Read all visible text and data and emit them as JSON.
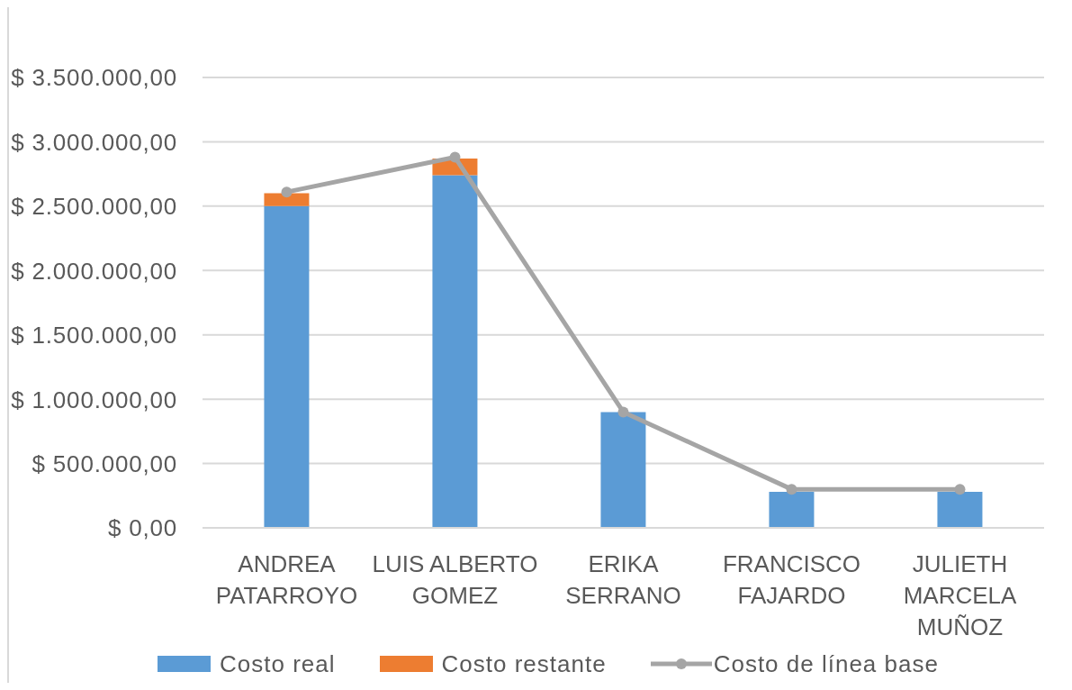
{
  "chart_data": {
    "type": "bar",
    "stacked": true,
    "categories": [
      "ANDREA PATARROYO",
      "LUIS ALBERTO GOMEZ",
      "ERIKA SERRANO",
      "FRANCISCO FAJARDO",
      "JULIETH MARCELA MUÑOZ"
    ],
    "series": [
      {
        "name": "Costo real",
        "color": "#5b9bd5",
        "values": [
          2500000,
          2740000,
          900000,
          280000,
          280000
        ]
      },
      {
        "name": "Costo restante",
        "color": "#ed7d31",
        "values": [
          100000,
          130000,
          0,
          0,
          0
        ]
      },
      {
        "name": "Costo de línea base",
        "type": "line",
        "color": "#a5a5a5",
        "values": [
          2610000,
          2880000,
          900000,
          300000,
          300000
        ]
      }
    ],
    "ylim": [
      0,
      3500000
    ],
    "yticks": [
      {
        "value": 0,
        "label": "$ 0,00"
      },
      {
        "value": 500000,
        "label": "$ 500.000,00"
      },
      {
        "value": 1000000,
        "label": "$ 1.000.000,00"
      },
      {
        "value": 1500000,
        "label": "$ 1.500.000,00"
      },
      {
        "value": 2000000,
        "label": "$ 2.000.000,00"
      },
      {
        "value": 2500000,
        "label": "$ 2.500.000,00"
      },
      {
        "value": 3000000,
        "label": "$ 3.000.000,00"
      },
      {
        "value": 3500000,
        "label": "$ 3.500.000,00"
      }
    ],
    "grid": "y",
    "legend": "bottom",
    "marker": "circle",
    "line_style": "solid"
  }
}
